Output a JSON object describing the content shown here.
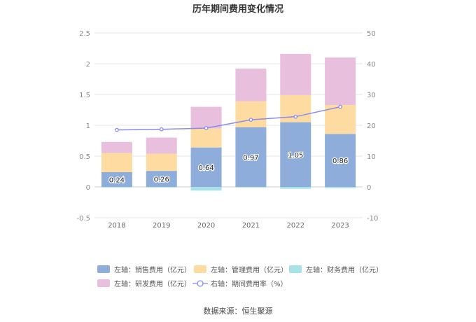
{
  "chart_data": {
    "type": "bar",
    "title": "历年期间费用变化情况",
    "categories": [
      "2018",
      "2019",
      "2020",
      "2021",
      "2022",
      "2023"
    ],
    "left_axis": {
      "ylim": [
        -0.5,
        2.5
      ],
      "ticks": [
        "-0.5",
        "0",
        "0.5",
        "1",
        "1.5",
        "2",
        "2.5"
      ]
    },
    "right_axis": {
      "ylim": [
        -10,
        50
      ],
      "ticks": [
        "-10",
        "0",
        "10",
        "20",
        "30",
        "40",
        "50"
      ]
    },
    "stacked_series": [
      {
        "name": "左轴：销售费用（亿元）",
        "color": "#8eaddb",
        "values": [
          0.24,
          0.26,
          0.64,
          0.97,
          1.05,
          0.86
        ],
        "labels": [
          "0.24",
          "0.26",
          "0.64",
          "0.97",
          "1.05",
          "0.86"
        ]
      },
      {
        "name": "左轴：管理费用（亿元）",
        "color": "#fddba1",
        "values": [
          0.31,
          0.28,
          0.31,
          0.42,
          0.44,
          0.47
        ]
      },
      {
        "name": "左轴：财务费用（亿元）",
        "color": "#a6e3e9",
        "values": [
          -0.01,
          -0.01,
          -0.06,
          -0.01,
          -0.03,
          -0.02
        ]
      },
      {
        "name": "左轴：研发费用（亿元）",
        "color": "#e8bfdd",
        "values": [
          0.18,
          0.26,
          0.35,
          0.53,
          0.67,
          0.77
        ]
      }
    ],
    "line_series": {
      "name": "右轴：期间费用率（%）",
      "color": "#8a8af0",
      "values": [
        18.5,
        18.7,
        19.1,
        21.8,
        22.8,
        26.0
      ]
    },
    "grid": true,
    "legend_position": "bottom"
  },
  "source": "数据来源：恒生聚源"
}
